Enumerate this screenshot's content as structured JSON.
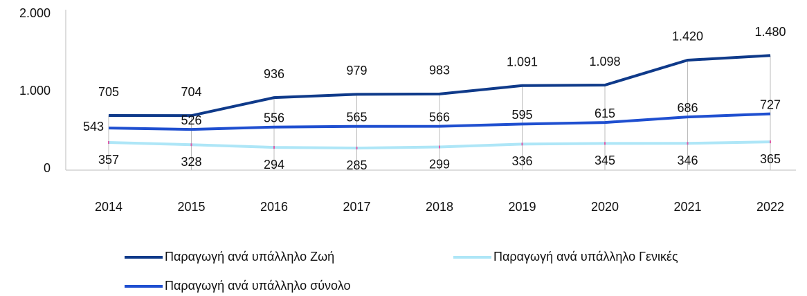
{
  "chart_data": {
    "type": "line",
    "categories": [
      "2014",
      "2015",
      "2016",
      "2017",
      "2018",
      "2019",
      "2020",
      "2021",
      "2022"
    ],
    "series": [
      {
        "name": "Παραγωγή ανά υπάλληλο Ζωή",
        "color": "#0f3a8a",
        "values": [
          705,
          704,
          936,
          979,
          983,
          1091,
          1098,
          1420,
          1480
        ],
        "value_labels": [
          "705",
          "704",
          "936",
          "979",
          "983",
          "1.091",
          "1.098",
          "1.420",
          "1.480"
        ]
      },
      {
        "name": "Παραγωγή ανά υπάλληλο Γενικές",
        "color": "#aee6f7",
        "values": [
          357,
          328,
          294,
          285,
          299,
          336,
          345,
          346,
          365
        ]
      },
      {
        "name": "Παραγωγή ανά υπάλληλο σύνολο",
        "color": "#1f4fd0",
        "values": [
          543,
          526,
          556,
          565,
          566,
          595,
          615,
          686,
          727
        ]
      }
    ],
    "ylim": [
      0,
      2000
    ],
    "yticks": [
      0,
      {
        "value": 1000,
        "label": "1.000"
      },
      {
        "value": 2000,
        "label": "2.000"
      }
    ]
  }
}
